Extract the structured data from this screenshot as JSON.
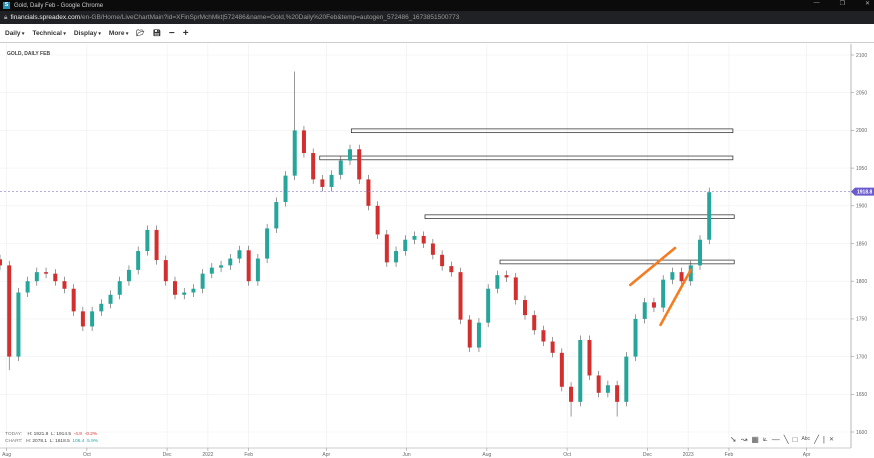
{
  "window": {
    "title": "Gold, Daily Feb - Google Chrome",
    "url_domain": "financials.spreadex.com",
    "url_path": "/en-GB/Home/LiveChartMain?id=XFinSprMchMkt|572486&name=Gold,%20Daily%20Feb&temp=autogen_572486_1673851500773"
  },
  "toolbar": {
    "items": [
      "Daily",
      "Technical",
      "Display",
      "More"
    ],
    "icons": [
      "open-folder-icon",
      "save-icon",
      "zoom-out-icon",
      "zoom-in-icon"
    ]
  },
  "info": {
    "today_label": "TODAY:",
    "today_h": "H: 1921.8",
    "today_l": "L: 1914.5",
    "today_chg": "-4.8",
    "today_pct": "-0.2%",
    "chart_label": "CHART:",
    "chart_h": "H: 2078.1",
    "chart_l": "L: 1618.5",
    "chart_chg": "106.4",
    "chart_pct": "5.9%"
  },
  "drawing_tools": [
    "arrow-icon",
    "curve-icon",
    "fibonacci-icon",
    "fan-icon",
    "horizontal-line-icon",
    "trend-line-icon",
    "rectangle-icon",
    "text-icon",
    "pen-icon",
    "separator",
    "close-icon"
  ],
  "colors": {
    "up": "#26a69a",
    "down": "#d32f2f",
    "trend": "#f57c20",
    "price_tag": "#6a5acd"
  },
  "chart_data": {
    "type": "candlestick",
    "title": "GOLD, DAILY FEB",
    "ylim": [
      1600,
      2100
    ],
    "yticks": [
      1600,
      1650,
      1700,
      1750,
      1800,
      1850,
      1900,
      1950,
      2000,
      2050,
      2100
    ],
    "xlim": [
      "2021-07-27",
      "2023-05-04"
    ],
    "xticks": [
      {
        "label": "Aug",
        "date": "2021-08-01"
      },
      {
        "label": "Oct",
        "date": "2021-10-01"
      },
      {
        "label": "Dec",
        "date": "2021-12-01"
      },
      {
        "label": "2022",
        "date": "2022-01-01"
      },
      {
        "label": "Feb",
        "date": "2022-02-01"
      },
      {
        "label": "Apr",
        "date": "2022-04-01"
      },
      {
        "label": "Jun",
        "date": "2022-06-01"
      },
      {
        "label": "Aug",
        "date": "2022-08-01"
      },
      {
        "label": "Oct",
        "date": "2022-10-01"
      },
      {
        "label": "Dec",
        "date": "2022-12-01"
      },
      {
        "label": "2023",
        "date": "2023-01-01"
      },
      {
        "label": "Feb",
        "date": "2023-02-01"
      },
      {
        "label": "Apr",
        "date": "2023-04-01"
      }
    ],
    "current_price": 1918.8,
    "grid": true,
    "start": "2021-07-27",
    "interval_days": 7,
    "closes": [
      1821,
      1700,
      1785,
      1800,
      1812,
      1810,
      1800,
      1790,
      1760,
      1740,
      1760,
      1770,
      1782,
      1800,
      1815,
      1840,
      1868,
      1828,
      1800,
      1782,
      1785,
      1790,
      1810,
      1818,
      1821,
      1830,
      1841,
      1800,
      1830,
      1870,
      1905,
      1940,
      2000,
      1970,
      1935,
      1925,
      1941,
      1960,
      1975,
      1935,
      1900,
      1862,
      1825,
      1840,
      1855,
      1860,
      1850,
      1835,
      1820,
      1812,
      1749,
      1712,
      1745,
      1790,
      1808,
      1805,
      1775,
      1755,
      1735,
      1720,
      1705,
      1660,
      1640,
      1722,
      1675,
      1652,
      1662,
      1640,
      1700,
      1750,
      1772,
      1765,
      1802,
      1812,
      1800,
      1821,
      1855,
      1918
    ],
    "chart_high": 2078.1,
    "chart_low": 1618.5,
    "zones": [
      {
        "from": "2022-04-20",
        "to": "2023-02-04",
        "low": 1997,
        "high": 2002
      },
      {
        "from": "2022-03-27",
        "to": "2023-02-04",
        "low": 1961,
        "high": 1966
      },
      {
        "from": "2022-06-15",
        "to": "2023-02-05",
        "low": 1883,
        "high": 1888
      },
      {
        "from": "2022-08-11",
        "to": "2023-02-05",
        "low": 1823,
        "high": 1828
      }
    ],
    "trendlines": [
      {
        "from": [
          "2022-11-18",
          1795
        ],
        "to": [
          "2022-12-22",
          1844
        ]
      },
      {
        "from": [
          "2022-12-11",
          1742
        ],
        "to": [
          "2023-01-03",
          1815
        ]
      }
    ]
  }
}
